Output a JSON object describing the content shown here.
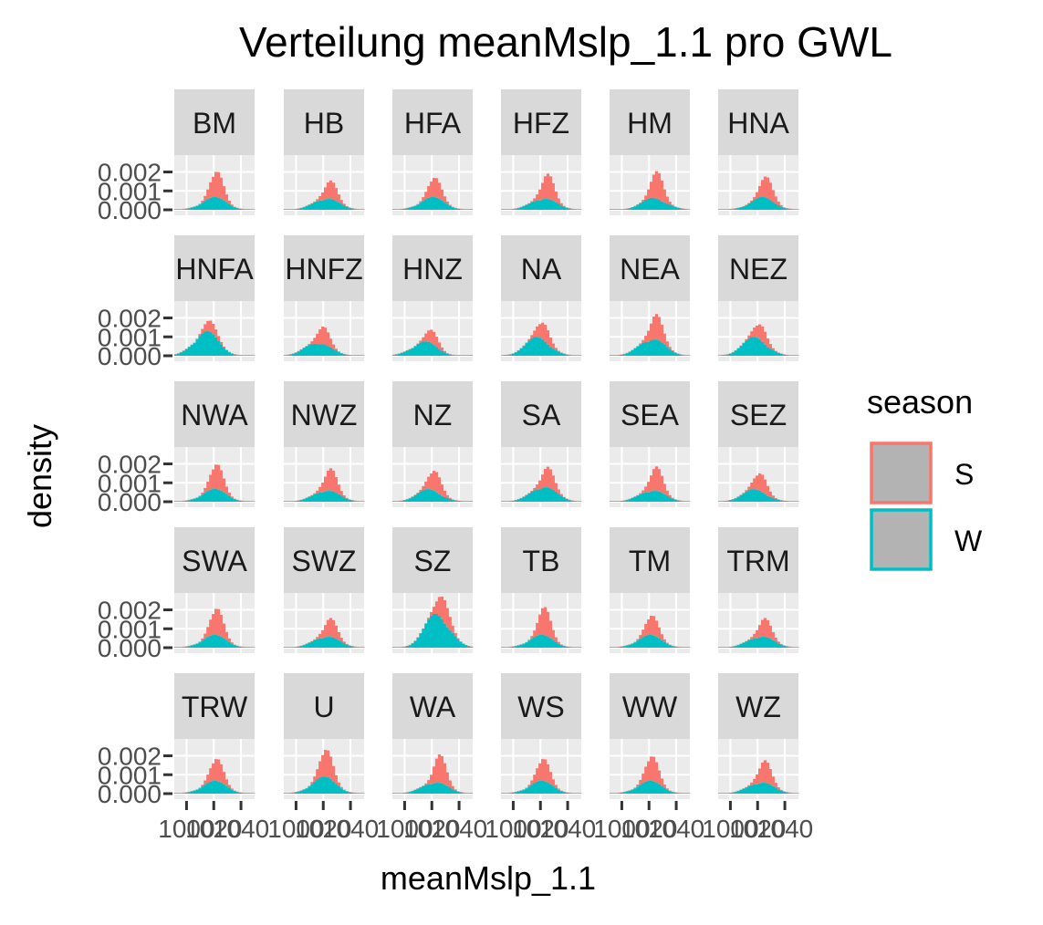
{
  "chart_data": {
    "type": "histogram",
    "title": "Verteilung meanMslp_1.1 pro GWL",
    "xlabel": "meanMslp_1.1",
    "ylabel": "density",
    "legend": {
      "title": "season",
      "position": "right",
      "items": [
        {
          "label": "S",
          "color": "#F8766D"
        },
        {
          "label": "W",
          "color": "#00BFC4"
        }
      ]
    },
    "panels": [
      "BM",
      "HB",
      "HFA",
      "HFZ",
      "HM",
      "HNA",
      "HNFA",
      "HNFZ",
      "HNZ",
      "NA",
      "NEA",
      "NEZ",
      "NWA",
      "NWZ",
      "NZ",
      "SA",
      "SEA",
      "SEZ",
      "SWA",
      "SWZ",
      "SZ",
      "TB",
      "TM",
      "TRM",
      "TRW",
      "U",
      "WA",
      "WS",
      "WW",
      "WZ"
    ],
    "layout": {
      "columns": 6,
      "rows": 5
    },
    "y_ticks": [
      0.0,
      0.001,
      0.002
    ],
    "y_tick_labels": [
      "0.000",
      "0.001",
      "0.002"
    ],
    "ylim": [
      0,
      0.0027
    ],
    "x_ticks": [
      1000,
      1020,
      1040
    ],
    "x_tick_labels": [
      "1000",
      "1020",
      "1040"
    ],
    "xlim": [
      991,
      1050
    ],
    "series": [
      {
        "name": "S",
        "color": "#F8766D"
      },
      {
        "name": "W",
        "color": "#00BFC4"
      }
    ],
    "panel_shape": {
      "BM": {
        "peakS": 0.00195,
        "posS": 1022,
        "peakW": 0.0006,
        "posW": 1020
      },
      "HB": {
        "peakS": 0.00148,
        "posS": 1025,
        "peakW": 0.0006,
        "posW": 1022
      },
      "HFA": {
        "peakS": 0.0016,
        "posS": 1022,
        "peakW": 0.0006,
        "posW": 1020
      },
      "HFZ": {
        "peakS": 0.00185,
        "posS": 1025,
        "peakW": 0.0006,
        "posW": 1022
      },
      "HM": {
        "peakS": 0.00175,
        "posS": 1026,
        "peakW": 0.0006,
        "posW": 1024
      },
      "HNA": {
        "peakS": 0.0016,
        "posS": 1027,
        "peakW": 0.0006,
        "posW": 1023
      },
      "HNFA": {
        "peakS": 0.0015,
        "posS": 1018,
        "peakW": 0.0012,
        "posW": 1014
      },
      "HNFZ": {
        "peakS": 0.0014,
        "posS": 1020,
        "peakW": 0.0007,
        "posW": 1016
      },
      "HNZ": {
        "peakS": 0.0012,
        "posS": 1020,
        "peakW": 0.0007,
        "posW": 1014
      },
      "NA": {
        "peakS": 0.0017,
        "posS": 1022,
        "peakW": 0.0009,
        "posW": 1018
      },
      "NEA": {
        "peakS": 0.0021,
        "posS": 1025,
        "peakW": 0.0009,
        "posW": 1022
      },
      "NEZ": {
        "peakS": 0.0016,
        "posS": 1022,
        "peakW": 0.0009,
        "posW": 1018
      },
      "NWA": {
        "peakS": 0.0019,
        "posS": 1022,
        "peakW": 0.0006,
        "posW": 1020
      },
      "NWZ": {
        "peakS": 0.0017,
        "posS": 1025,
        "peakW": 0.0006,
        "posW": 1022
      },
      "NZ": {
        "peakS": 0.00165,
        "posS": 1022,
        "peakW": 0.0006,
        "posW": 1018
      },
      "SA": {
        "peakS": 0.00175,
        "posS": 1025,
        "peakW": 0.0008,
        "posW": 1022
      },
      "SEA": {
        "peakS": 0.0018,
        "posS": 1025,
        "peakW": 0.0006,
        "posW": 1022
      },
      "SEZ": {
        "peakS": 0.0015,
        "posS": 1022,
        "peakW": 0.0006,
        "posW": 1018
      },
      "SWA": {
        "peakS": 0.002,
        "posS": 1022,
        "peakW": 0.0006,
        "posW": 1020
      },
      "SWZ": {
        "peakS": 0.0015,
        "posS": 1025,
        "peakW": 0.0006,
        "posW": 1022
      },
      "SZ": {
        "peakS": 0.0026,
        "posS": 1028,
        "peakW": 0.0017,
        "posW": 1024
      },
      "TB": {
        "peakS": 0.0018,
        "posS": 1023,
        "peakW": 0.0006,
        "posW": 1020
      },
      "TM": {
        "peakS": 0.0016,
        "posS": 1022,
        "peakW": 0.0006,
        "posW": 1020
      },
      "TRM": {
        "peakS": 0.0015,
        "posS": 1025,
        "peakW": 0.0006,
        "posW": 1022
      },
      "TRW": {
        "peakS": 0.00175,
        "posS": 1022,
        "peakW": 0.0006,
        "posW": 1020
      },
      "U": {
        "peakS": 0.0022,
        "posS": 1022,
        "peakW": 0.0008,
        "posW": 1020
      },
      "WA": {
        "peakS": 0.0018,
        "posS": 1026,
        "peakW": 0.0006,
        "posW": 1022
      },
      "WS": {
        "peakS": 0.00175,
        "posS": 1022,
        "peakW": 0.0006,
        "posW": 1020
      },
      "WW": {
        "peakS": 0.0019,
        "posS": 1022,
        "peakW": 0.0006,
        "posW": 1020
      },
      "WZ": {
        "peakS": 0.0017,
        "posS": 1025,
        "peakW": 0.0006,
        "posW": 1022
      }
    }
  }
}
